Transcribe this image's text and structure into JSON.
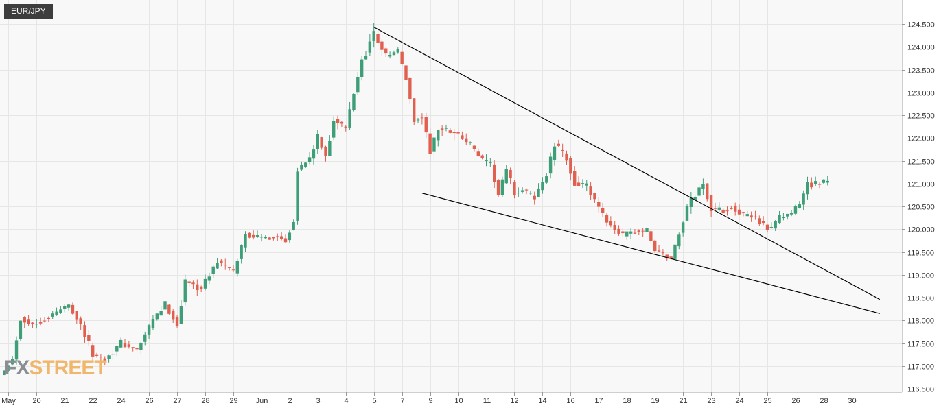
{
  "header": {
    "symbol": "EUR/JPY"
  },
  "logo": {
    "fx": "FX",
    "street": "STREET"
  },
  "chart_data": {
    "type": "candlestick",
    "title": "EUR/JPY",
    "xlabel": "",
    "ylabel": "",
    "ylim": [
      116.45,
      124.75
    ],
    "grid": true,
    "y_ticks": [
      "124.500",
      "124.000",
      "123.500",
      "123.000",
      "122.500",
      "122.000",
      "121.500",
      "121.000",
      "120.500",
      "120.000",
      "119.500",
      "119.000",
      "118.500",
      "118.000",
      "117.500",
      "117.000",
      "116.500"
    ],
    "x_ticks": [
      {
        "label": "May",
        "i": 1
      },
      {
        "label": "20",
        "i": 8
      },
      {
        "label": "21",
        "i": 15
      },
      {
        "label": "22",
        "i": 22
      },
      {
        "label": "24",
        "i": 29
      },
      {
        "label": "26",
        "i": 36
      },
      {
        "label": "27",
        "i": 43
      },
      {
        "label": "28",
        "i": 50
      },
      {
        "label": "29",
        "i": 57
      },
      {
        "label": "Jun",
        "i": 64
      },
      {
        "label": "2",
        "i": 71
      },
      {
        "label": "3",
        "i": 78
      },
      {
        "label": "4",
        "i": 85
      },
      {
        "label": "5",
        "i": 92
      },
      {
        "label": "7",
        "i": 99
      },
      {
        "label": "9",
        "i": 106
      },
      {
        "label": "10",
        "i": 113
      },
      {
        "label": "11",
        "i": 120
      },
      {
        "label": "12",
        "i": 127
      },
      {
        "label": "14",
        "i": 134
      },
      {
        "label": "16",
        "i": 141
      },
      {
        "label": "17",
        "i": 148
      },
      {
        "label": "18",
        "i": 155
      },
      {
        "label": "19",
        "i": 162
      },
      {
        "label": "21",
        "i": 169
      },
      {
        "label": "23",
        "i": 176
      },
      {
        "label": "24",
        "i": 183
      },
      {
        "label": "25",
        "i": 190
      },
      {
        "label": "26",
        "i": 197
      },
      {
        "label": "28",
        "i": 204
      },
      {
        "label": "30",
        "i": 211
      }
    ],
    "colors": {
      "up": "#3e9e78",
      "down": "#e05f4f",
      "grid": "#e6e6e6",
      "line": "#000000",
      "background": "#f8f8f8"
    },
    "trendlines": [
      {
        "name": "upper",
        "from": [
          92,
          124.43
        ],
        "to": [
          218,
          118.46
        ]
      },
      {
        "name": "lower",
        "from": [
          104,
          120.79
        ],
        "to": [
          218,
          118.15
        ]
      }
    ],
    "anchors": [
      [
        0,
        116.9,
        0
      ],
      [
        2,
        117.15,
        0.05
      ],
      [
        4,
        118.05,
        0.09
      ],
      [
        7,
        117.9,
        0.06
      ],
      [
        12,
        118.12,
        0.08
      ],
      [
        16,
        118.35,
        0.07
      ],
      [
        19,
        117.9,
        0.09
      ],
      [
        22,
        117.25,
        0.08
      ],
      [
        25,
        117.15,
        0.07
      ],
      [
        29,
        117.5,
        0.08
      ],
      [
        33,
        117.35,
        0.06
      ],
      [
        37,
        118.0,
        0.08
      ],
      [
        40,
        118.35,
        0.09
      ],
      [
        43,
        117.9,
        0.08
      ],
      [
        45,
        118.85,
        0.1
      ],
      [
        49,
        118.7,
        0.08
      ],
      [
        53,
        119.3,
        0.09
      ],
      [
        57,
        119.05,
        0.08
      ],
      [
        60,
        119.9,
        0.09
      ],
      [
        64,
        119.8,
        0.06
      ],
      [
        68,
        119.85,
        0.08
      ],
      [
        70,
        119.75,
        0.07
      ],
      [
        72,
        120.2,
        0.06
      ],
      [
        73,
        121.3,
        0.07
      ],
      [
        76,
        121.55,
        0.08
      ],
      [
        78,
        122.0,
        0.09
      ],
      [
        80,
        121.6,
        0.08
      ],
      [
        82,
        122.4,
        0.08
      ],
      [
        85,
        122.2,
        0.1
      ],
      [
        87,
        123.0,
        0.1
      ],
      [
        89,
        123.7,
        0.12
      ],
      [
        92,
        124.3,
        0.12
      ],
      [
        95,
        123.8,
        0.08
      ],
      [
        98,
        123.9,
        0.1
      ],
      [
        100,
        123.3,
        0.1
      ],
      [
        102,
        122.4,
        0.1
      ],
      [
        104,
        122.45,
        0.1
      ],
      [
        106,
        121.7,
        0.12
      ],
      [
        108,
        122.2,
        0.1
      ],
      [
        112,
        122.15,
        0.1
      ],
      [
        116,
        121.85,
        0.1
      ],
      [
        119,
        121.5,
        0.08
      ],
      [
        121,
        121.4,
        0.08
      ],
      [
        123,
        120.75,
        0.08
      ],
      [
        125,
        121.3,
        0.08
      ],
      [
        127,
        120.8,
        0.1
      ],
      [
        129,
        120.85,
        0.08
      ],
      [
        132,
        120.7,
        0.08
      ],
      [
        135,
        121.2,
        0.08
      ],
      [
        137,
        121.85,
        0.1
      ],
      [
        140,
        121.55,
        0.1
      ],
      [
        142,
        121.0,
        0.1
      ],
      [
        145,
        120.95,
        0.08
      ],
      [
        147,
        120.6,
        0.08
      ],
      [
        149,
        120.3,
        0.08
      ],
      [
        151,
        120.1,
        0.08
      ],
      [
        154,
        119.85,
        0.08
      ],
      [
        157,
        119.95,
        0.08
      ],
      [
        160,
        119.95,
        0.1
      ],
      [
        162,
        119.55,
        0.08
      ],
      [
        164,
        119.45,
        0.08
      ],
      [
        166,
        119.35,
        0.06
      ],
      [
        168,
        119.9,
        0.08
      ],
      [
        170,
        120.5,
        0.09
      ],
      [
        172,
        120.75,
        0.1
      ],
      [
        174,
        121.0,
        0.1
      ],
      [
        176,
        120.45,
        0.1
      ],
      [
        179,
        120.4,
        0.08
      ],
      [
        181,
        120.5,
        0.08
      ],
      [
        184,
        120.3,
        0.08
      ],
      [
        187,
        120.25,
        0.08
      ],
      [
        189,
        120.1,
        0.08
      ],
      [
        191,
        120.0,
        0.08
      ],
      [
        193,
        120.25,
        0.08
      ],
      [
        196,
        120.35,
        0.07
      ],
      [
        198,
        120.55,
        0.08
      ],
      [
        200,
        121.0,
        0.1
      ],
      [
        203,
        121.0,
        0.08
      ],
      [
        205,
        121.05,
        0.07
      ]
    ]
  }
}
